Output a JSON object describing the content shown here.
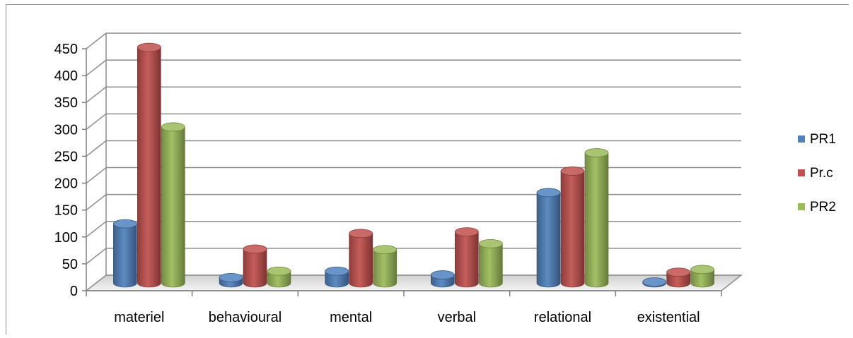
{
  "chart_data": {
    "type": "bar",
    "title": "",
    "xlabel": "",
    "ylabel": "",
    "categories": [
      "materiel",
      "behavioural",
      "mental",
      "verbal",
      "relational",
      "existential"
    ],
    "series": [
      {
        "name": "PR1",
        "color": "#4f81bd",
        "values": [
          110,
          10,
          22,
          15,
          168,
          2
        ]
      },
      {
        "name": "Pr.c",
        "color": "#c0504d",
        "values": [
          438,
          63,
          92,
          95,
          208,
          20
        ]
      },
      {
        "name": "PR2",
        "color": "#9bbb59",
        "values": [
          290,
          22,
          62,
          73,
          242,
          25
        ]
      }
    ],
    "yticks": [
      "0",
      "50",
      "100",
      "150",
      "200",
      "250",
      "300",
      "350",
      "400",
      "450"
    ],
    "ylim": [
      0,
      450
    ],
    "grid": true,
    "legend_position": "right",
    "style": "3d-cylinder"
  }
}
